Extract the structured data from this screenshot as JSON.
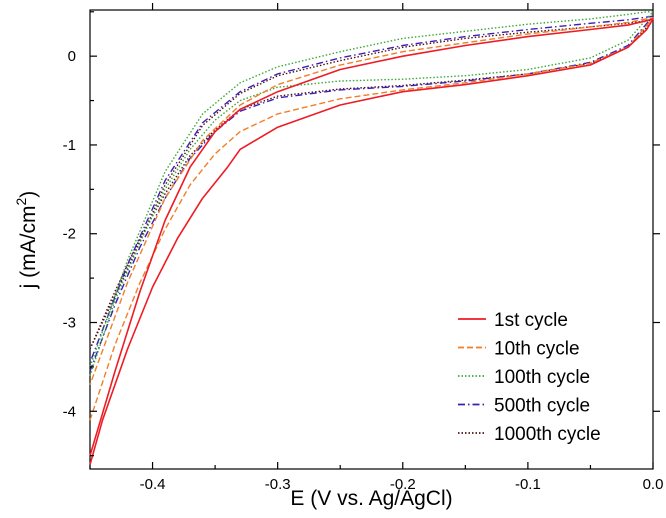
{
  "chart_data": {
    "type": "line",
    "xlabel": "E (V vs. Ag/AgCl)",
    "ylabel": {
      "prefix": "j (mA/cm",
      "sup": "2",
      "suffix": ")"
    },
    "xlim": [
      -0.45,
      0.0
    ],
    "ylim": [
      -4.65,
      0.52
    ],
    "x_ticks": [
      -0.4,
      -0.3,
      -0.2,
      -0.1,
      0.0
    ],
    "x_tick_labels": [
      "-0.4",
      "-0.3",
      "-0.2",
      "-0.1",
      "0.0"
    ],
    "y_ticks": [
      0,
      -1,
      -2,
      -3,
      -4
    ],
    "y_tick_labels": [
      "0",
      "-1",
      "-2",
      "-3",
      "-4"
    ],
    "grid": false,
    "legend_position": "bottom-right",
    "series": [
      {
        "name": "1st cycle",
        "color": "#ee1c24",
        "dash": "solid",
        "x": [
          -0.45,
          -0.44,
          -0.42,
          -0.4,
          -0.38,
          -0.36,
          -0.34,
          -0.33,
          -0.3,
          -0.25,
          -0.2,
          -0.15,
          -0.1,
          -0.05,
          -0.02,
          -0.005,
          0.0,
          -0.005,
          -0.02,
          -0.05,
          -0.1,
          -0.15,
          -0.2,
          -0.25,
          -0.3,
          -0.33,
          -0.35,
          -0.37,
          -0.39,
          -0.41,
          -0.43,
          -0.45
        ],
        "y": [
          -4.6,
          -4.1,
          -3.3,
          -2.6,
          -2.05,
          -1.6,
          -1.25,
          -1.05,
          -0.8,
          -0.55,
          -0.4,
          -0.32,
          -0.22,
          -0.1,
          0.1,
          0.3,
          0.42,
          0.4,
          0.35,
          0.3,
          0.22,
          0.12,
          0.0,
          -0.15,
          -0.4,
          -0.6,
          -0.85,
          -1.25,
          -1.85,
          -2.65,
          -3.55,
          -4.5
        ]
      },
      {
        "name": "10th cycle",
        "color": "#f07f2a",
        "dash": "dashed",
        "x": [
          -0.45,
          -0.43,
          -0.41,
          -0.39,
          -0.37,
          -0.35,
          -0.33,
          -0.3,
          -0.25,
          -0.2,
          -0.15,
          -0.1,
          -0.05,
          -0.02,
          0.0,
          -0.005,
          -0.02,
          -0.05,
          -0.1,
          -0.15,
          -0.2,
          -0.25,
          -0.3,
          -0.33,
          -0.36,
          -0.39,
          -0.42,
          -0.45
        ],
        "y": [
          -4.1,
          -3.25,
          -2.55,
          -1.95,
          -1.45,
          -1.1,
          -0.85,
          -0.65,
          -0.48,
          -0.38,
          -0.3,
          -0.2,
          -0.08,
          0.1,
          0.43,
          0.42,
          0.38,
          0.33,
          0.25,
          0.15,
          0.05,
          -0.1,
          -0.32,
          -0.55,
          -0.95,
          -1.6,
          -2.55,
          -3.7
        ]
      },
      {
        "name": "100th cycle",
        "color": "#3aa935",
        "dash": "dotted",
        "x": [
          -0.45,
          -0.43,
          -0.41,
          -0.39,
          -0.37,
          -0.35,
          -0.33,
          -0.3,
          -0.25,
          -0.2,
          -0.15,
          -0.1,
          -0.05,
          -0.02,
          0.0,
          -0.005,
          -0.02,
          -0.05,
          -0.1,
          -0.15,
          -0.2,
          -0.25,
          -0.3,
          -0.33,
          -0.36,
          -0.39,
          -0.42,
          -0.45
        ],
        "y": [
          -3.6,
          -2.75,
          -2.1,
          -1.5,
          -1.05,
          -0.72,
          -0.5,
          -0.35,
          -0.28,
          -0.26,
          -0.22,
          -0.15,
          -0.02,
          0.18,
          0.5,
          0.5,
          0.47,
          0.42,
          0.36,
          0.28,
          0.2,
          0.05,
          -0.12,
          -0.3,
          -0.65,
          -1.3,
          -2.3,
          -3.5
        ]
      },
      {
        "name": "500th cycle",
        "color": "#3d1fb8",
        "dash": "dashdot",
        "x": [
          -0.45,
          -0.43,
          -0.41,
          -0.39,
          -0.37,
          -0.35,
          -0.33,
          -0.3,
          -0.25,
          -0.2,
          -0.15,
          -0.1,
          -0.05,
          -0.02,
          0.0,
          -0.005,
          -0.02,
          -0.05,
          -0.1,
          -0.15,
          -0.2,
          -0.25,
          -0.3,
          -0.33,
          -0.36,
          -0.39,
          -0.42,
          -0.45
        ],
        "y": [
          -3.55,
          -2.8,
          -2.15,
          -1.6,
          -1.15,
          -0.85,
          -0.62,
          -0.47,
          -0.38,
          -0.34,
          -0.28,
          -0.2,
          -0.07,
          0.12,
          0.45,
          0.44,
          0.41,
          0.37,
          0.3,
          0.22,
          0.12,
          -0.02,
          -0.2,
          -0.4,
          -0.75,
          -1.4,
          -2.35,
          -3.45
        ]
      },
      {
        "name": "1000th cycle",
        "color": "#4a1515",
        "dash": "dotted",
        "x": [
          -0.45,
          -0.43,
          -0.41,
          -0.39,
          -0.37,
          -0.35,
          -0.33,
          -0.3,
          -0.25,
          -0.2,
          -0.15,
          -0.1,
          -0.05,
          -0.02,
          0.0,
          -0.005,
          -0.02,
          -0.05,
          -0.1,
          -0.15,
          -0.2,
          -0.25,
          -0.3,
          -0.33,
          -0.36,
          -0.39,
          -0.42,
          -0.45
        ],
        "y": [
          -3.3,
          -2.65,
          -2.05,
          -1.55,
          -1.12,
          -0.83,
          -0.6,
          -0.45,
          -0.37,
          -0.33,
          -0.27,
          -0.2,
          -0.08,
          0.1,
          0.4,
          0.4,
          0.37,
          0.33,
          0.27,
          0.2,
          0.1,
          -0.05,
          -0.22,
          -0.42,
          -0.78,
          -1.45,
          -2.4,
          -3.3
        ]
      }
    ]
  }
}
